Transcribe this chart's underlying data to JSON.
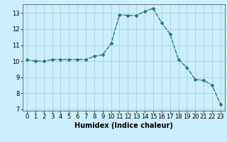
{
  "x": [
    0,
    1,
    2,
    3,
    4,
    5,
    6,
    7,
    8,
    9,
    10,
    11,
    12,
    13,
    14,
    15,
    16,
    17,
    18,
    19,
    20,
    21,
    22,
    23
  ],
  "y": [
    10.1,
    10.0,
    10.0,
    10.1,
    10.1,
    10.1,
    10.1,
    10.1,
    10.3,
    10.4,
    11.1,
    12.9,
    12.85,
    12.85,
    13.1,
    13.3,
    12.4,
    11.7,
    10.1,
    9.6,
    8.85,
    8.8,
    8.5,
    7.3
  ],
  "line_color": "#2e7d6e",
  "marker": "D",
  "marker_size": 2,
  "xlabel": "Humidex (Indice chaleur)",
  "xlim": [
    -0.5,
    23.5
  ],
  "ylim": [
    6.9,
    13.55
  ],
  "yticks": [
    7,
    8,
    9,
    10,
    11,
    12,
    13
  ],
  "xticks": [
    0,
    1,
    2,
    3,
    4,
    5,
    6,
    7,
    8,
    9,
    10,
    11,
    12,
    13,
    14,
    15,
    16,
    17,
    18,
    19,
    20,
    21,
    22,
    23
  ],
  "background_color": "#cceeff",
  "grid_color": "#aacccc",
  "line_width": 1.0,
  "tick_labelsize": 6,
  "xlabel_fontsize": 7
}
